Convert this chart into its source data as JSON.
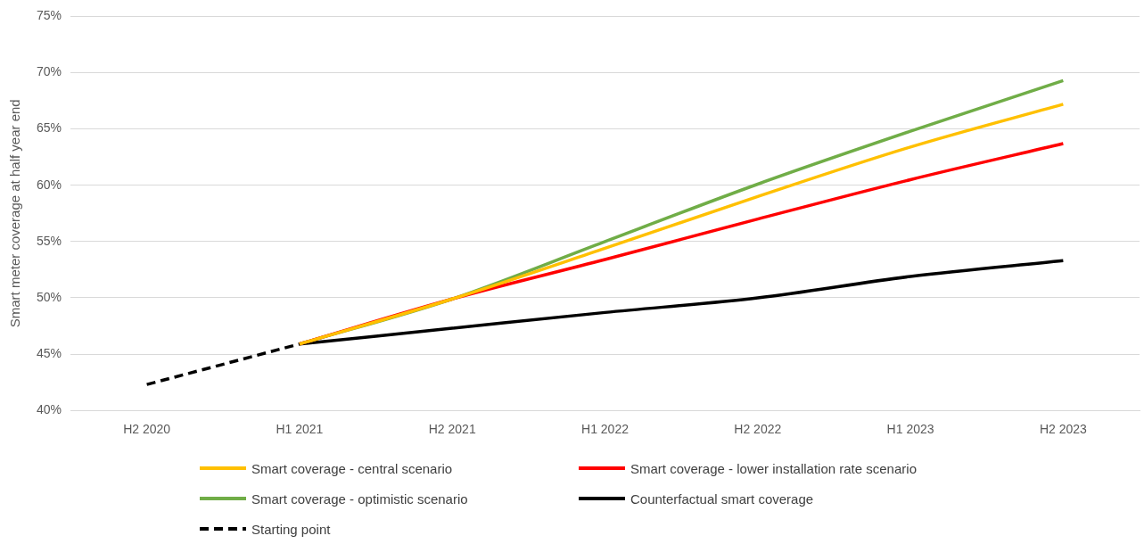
{
  "chart_data": {
    "type": "line",
    "ylabel": "Smart meter coverage at half year end",
    "categories": [
      "H2 2020",
      "H1 2021",
      "H2 2021",
      "H1 2022",
      "H2 2022",
      "H1 2023",
      "H2 2023"
    ],
    "series": [
      {
        "name": "Smart coverage - central scenario",
        "color": "#ffc000",
        "values": [
          null,
          45.9,
          49.9,
          54.4,
          59.0,
          63.4,
          67.2
        ]
      },
      {
        "name": "Smart coverage - lower installation rate scenario",
        "color": "#ff0000",
        "values": [
          null,
          45.9,
          49.9,
          53.4,
          57.0,
          60.5,
          63.7
        ]
      },
      {
        "name": "Smart coverage - optimistic scenario",
        "color": "#70ad47",
        "values": [
          null,
          45.9,
          49.9,
          55.0,
          60.1,
          64.8,
          69.3
        ]
      },
      {
        "name": "Counterfactual smart coverage",
        "color": "#000000",
        "values": [
          null,
          45.9,
          47.3,
          48.7,
          50.0,
          51.9,
          53.3
        ]
      },
      {
        "name": "Starting point",
        "color": "#000000",
        "line_style": "dashed",
        "values": [
          42.3,
          45.9,
          null,
          null,
          null,
          null,
          null
        ]
      }
    ],
    "ylim": [
      40,
      75
    ],
    "yticks": [
      {
        "value": 40,
        "label": "40%"
      },
      {
        "value": 45,
        "label": "45%"
      },
      {
        "value": 50,
        "label": "50%"
      },
      {
        "value": 55,
        "label": "55%"
      },
      {
        "value": 60,
        "label": "60%"
      },
      {
        "value": 65,
        "label": "65%"
      },
      {
        "value": 70,
        "label": "70%"
      },
      {
        "value": 75,
        "label": "75%"
      }
    ],
    "grid": "y",
    "legend": "bottom",
    "marker": "none",
    "line_style": "solid"
  }
}
